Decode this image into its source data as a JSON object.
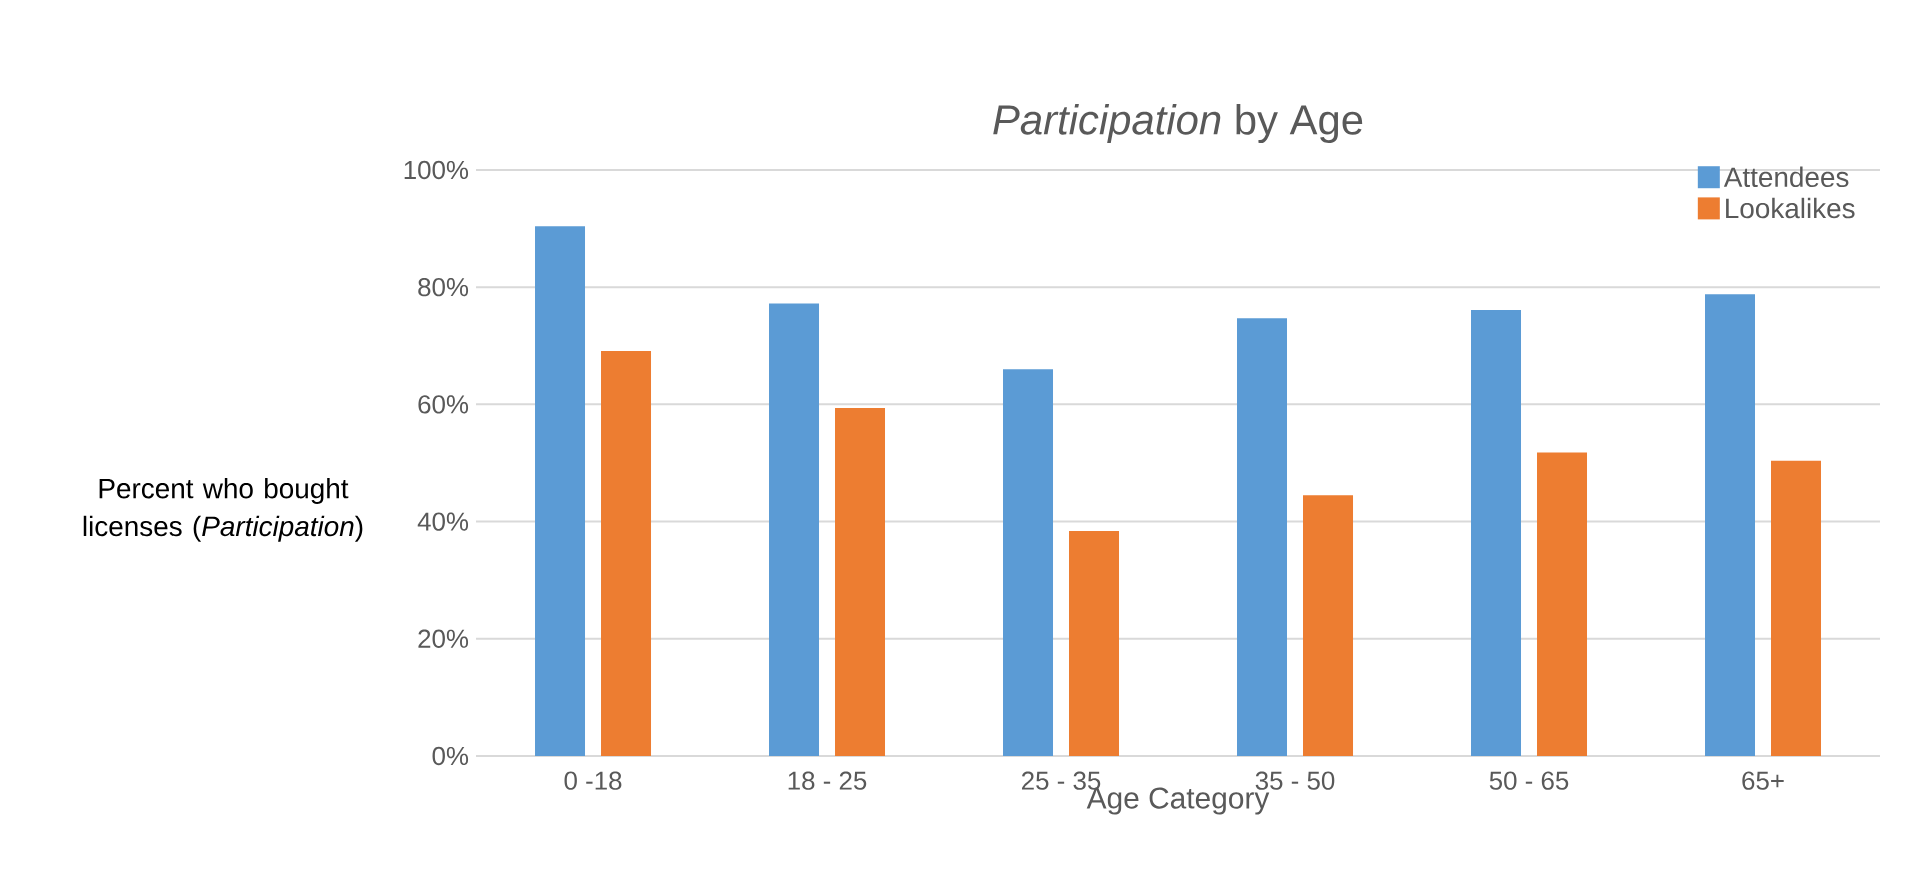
{
  "chart_data": {
    "type": "bar",
    "title": "*Participation* by Age",
    "xlabel": "Age Category",
    "ylabel": "Percent who bought licenses (*Participation*)",
    "categories": [
      "0 -18",
      "18 - 25",
      "25 - 35",
      "35 - 50",
      "50 - 65",
      "65+"
    ],
    "series": [
      {
        "name": "Attendees",
        "color": "#5b9bd5",
        "values": [
          90.4,
          77.2,
          66.0,
          74.7,
          76.1,
          78.8
        ]
      },
      {
        "name": "Lookalikes",
        "color": "#ed7d31",
        "values": [
          69.1,
          59.4,
          38.4,
          44.5,
          51.8,
          50.4
        ]
      }
    ],
    "ylim": [
      0,
      100
    ],
    "yticks": [
      {
        "value": 0,
        "label": "0%"
      },
      {
        "value": 20,
        "label": "20%"
      },
      {
        "value": 40,
        "label": "40%"
      },
      {
        "value": 60,
        "label": "60%"
      },
      {
        "value": 80,
        "label": "80%"
      },
      {
        "value": 100,
        "label": "100%"
      }
    ],
    "grid": "y",
    "legend": "top right"
  }
}
